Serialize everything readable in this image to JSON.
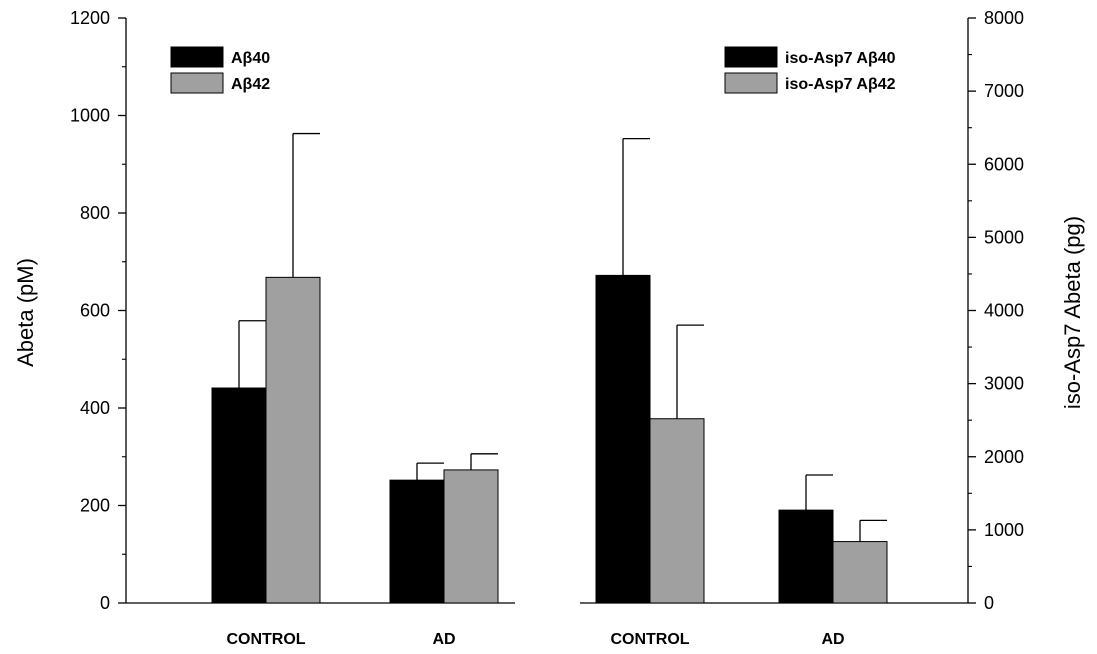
{
  "chart_data": {
    "type": "bar",
    "left_axis": {
      "label": "Abeta (pM)",
      "ylim": [
        0,
        1200
      ],
      "ticks": [
        "0",
        "200",
        "400",
        "600",
        "800",
        "1000",
        "1200"
      ]
    },
    "right_axis": {
      "label": "iso-Asp7 Abeta (pg)",
      "ylim": [
        0,
        8000
      ],
      "ticks": [
        "0",
        "1000",
        "2000",
        "3000",
        "4000",
        "5000",
        "6000",
        "7000",
        "8000"
      ]
    },
    "panels": [
      {
        "axis": "left",
        "categories": [
          "CONTROL",
          "AD"
        ],
        "series": [
          {
            "name": "Aβ40",
            "color": "#000000",
            "values": [
              441,
              252
            ],
            "errors": [
              138,
              35
            ]
          },
          {
            "name": "Aβ42",
            "color": "#a0a0a0",
            "values": [
              668,
              273
            ],
            "errors": [
              295,
              33
            ]
          }
        ]
      },
      {
        "axis": "right",
        "categories": [
          "CONTROL",
          "AD"
        ],
        "series": [
          {
            "name": "iso-Asp7 Aβ40",
            "color": "#000000",
            "values": [
              4480,
              1270
            ],
            "errors": [
              1870,
              480
            ]
          },
          {
            "name": "iso-Asp7 Aβ42",
            "color": "#a0a0a0",
            "values": [
              2520,
              840
            ],
            "errors": [
              1280,
              290
            ]
          }
        ]
      }
    ]
  }
}
